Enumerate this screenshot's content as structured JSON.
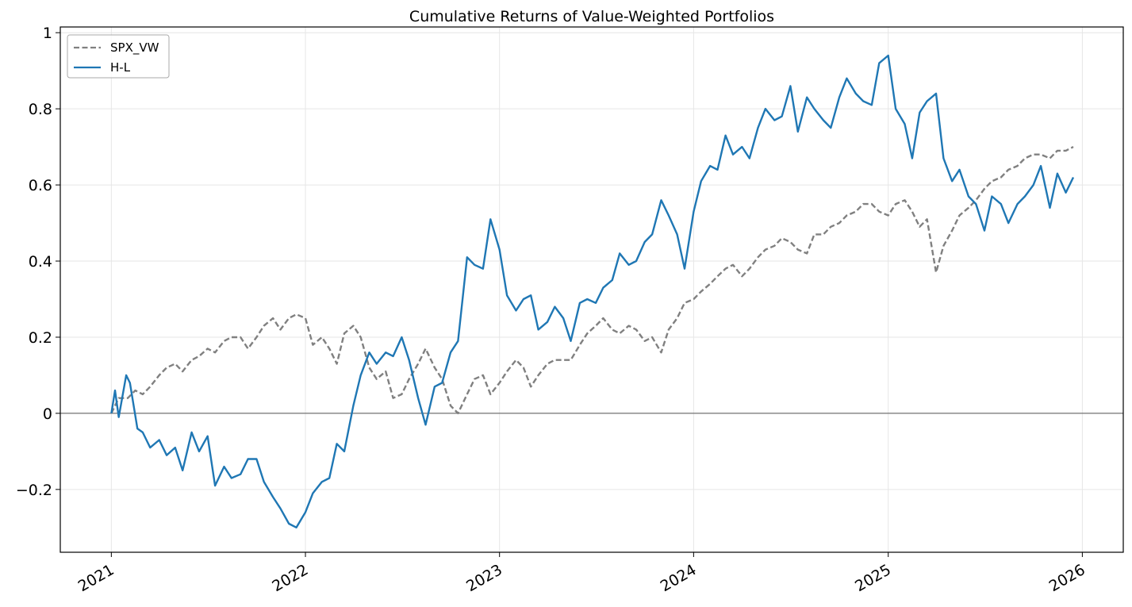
{
  "chart_data": {
    "type": "line",
    "title": "Cumulative Returns of Value-Weighted Portfolios",
    "xlabel": "",
    "ylabel": "",
    "xlim": [
      "2020-09-27",
      "2026-03-19"
    ],
    "ylim": [
      -0.365,
      1.015
    ],
    "x_ticks": [
      "2021",
      "2022",
      "2023",
      "2024",
      "2025",
      "2026"
    ],
    "y_ticks": [
      {
        "value": -0.2,
        "label": "−0.2"
      },
      {
        "value": 0,
        "label": "0"
      },
      {
        "value": 0.2,
        "label": "0.2"
      },
      {
        "value": 0.4,
        "label": "0.4"
      },
      {
        "value": 0.6,
        "label": "0.6"
      },
      {
        "value": 0.8,
        "label": "0.8"
      },
      {
        "value": 1.0,
        "label": "1"
      }
    ],
    "grid": true,
    "zero_line": true,
    "legend_position": "upper left",
    "series": [
      {
        "name": "SPX_VW",
        "color": "#808080",
        "style": "dashed",
        "points": [
          [
            "2021-01-01",
            0.0
          ],
          [
            "2021-01-15",
            0.04
          ],
          [
            "2021-02-01",
            0.04
          ],
          [
            "2021-02-15",
            0.06
          ],
          [
            "2021-03-01",
            0.05
          ],
          [
            "2021-03-15",
            0.07
          ],
          [
            "2021-04-01",
            0.1
          ],
          [
            "2021-04-15",
            0.12
          ],
          [
            "2021-05-01",
            0.13
          ],
          [
            "2021-05-15",
            0.11
          ],
          [
            "2021-06-01",
            0.14
          ],
          [
            "2021-06-15",
            0.15
          ],
          [
            "2021-07-01",
            0.17
          ],
          [
            "2021-07-15",
            0.16
          ],
          [
            "2021-08-01",
            0.19
          ],
          [
            "2021-08-15",
            0.2
          ],
          [
            "2021-09-01",
            0.2
          ],
          [
            "2021-09-15",
            0.17
          ],
          [
            "2021-10-01",
            0.2
          ],
          [
            "2021-10-15",
            0.23
          ],
          [
            "2021-11-01",
            0.25
          ],
          [
            "2021-11-15",
            0.22
          ],
          [
            "2021-12-01",
            0.25
          ],
          [
            "2021-12-15",
            0.26
          ],
          [
            "2022-01-01",
            0.25
          ],
          [
            "2022-01-15",
            0.18
          ],
          [
            "2022-02-01",
            0.2
          ],
          [
            "2022-02-15",
            0.17
          ],
          [
            "2022-03-01",
            0.13
          ],
          [
            "2022-03-15",
            0.21
          ],
          [
            "2022-04-01",
            0.23
          ],
          [
            "2022-04-15",
            0.2
          ],
          [
            "2022-05-01",
            0.12
          ],
          [
            "2022-05-15",
            0.09
          ],
          [
            "2022-06-01",
            0.11
          ],
          [
            "2022-06-15",
            0.04
          ],
          [
            "2022-07-01",
            0.05
          ],
          [
            "2022-07-15",
            0.09
          ],
          [
            "2022-08-01",
            0.13
          ],
          [
            "2022-08-15",
            0.17
          ],
          [
            "2022-09-01",
            0.12
          ],
          [
            "2022-09-15",
            0.09
          ],
          [
            "2022-10-01",
            0.02
          ],
          [
            "2022-10-15",
            0.0
          ],
          [
            "2022-11-01",
            0.05
          ],
          [
            "2022-11-15",
            0.09
          ],
          [
            "2022-12-01",
            0.1
          ],
          [
            "2022-12-15",
            0.05
          ],
          [
            "2023-01-01",
            0.08
          ],
          [
            "2023-01-15",
            0.11
          ],
          [
            "2023-02-01",
            0.14
          ],
          [
            "2023-02-15",
            0.12
          ],
          [
            "2023-03-01",
            0.07
          ],
          [
            "2023-03-15",
            0.1
          ],
          [
            "2023-04-01",
            0.13
          ],
          [
            "2023-04-15",
            0.14
          ],
          [
            "2023-05-01",
            0.14
          ],
          [
            "2023-05-15",
            0.14
          ],
          [
            "2023-06-01",
            0.18
          ],
          [
            "2023-06-15",
            0.21
          ],
          [
            "2023-07-01",
            0.23
          ],
          [
            "2023-07-15",
            0.25
          ],
          [
            "2023-08-01",
            0.22
          ],
          [
            "2023-08-15",
            0.21
          ],
          [
            "2023-09-01",
            0.23
          ],
          [
            "2023-09-15",
            0.22
          ],
          [
            "2023-10-01",
            0.19
          ],
          [
            "2023-10-15",
            0.2
          ],
          [
            "2023-11-01",
            0.16
          ],
          [
            "2023-11-15",
            0.22
          ],
          [
            "2023-12-01",
            0.25
          ],
          [
            "2023-12-15",
            0.29
          ],
          [
            "2024-01-01",
            0.3
          ],
          [
            "2024-01-15",
            0.32
          ],
          [
            "2024-02-01",
            0.34
          ],
          [
            "2024-02-15",
            0.36
          ],
          [
            "2024-03-01",
            0.38
          ],
          [
            "2024-03-15",
            0.39
          ],
          [
            "2024-04-01",
            0.36
          ],
          [
            "2024-04-15",
            0.38
          ],
          [
            "2024-05-01",
            0.41
          ],
          [
            "2024-05-15",
            0.43
          ],
          [
            "2024-06-01",
            0.44
          ],
          [
            "2024-06-15",
            0.46
          ],
          [
            "2024-07-01",
            0.45
          ],
          [
            "2024-07-15",
            0.43
          ],
          [
            "2024-08-01",
            0.42
          ],
          [
            "2024-08-15",
            0.47
          ],
          [
            "2024-09-01",
            0.47
          ],
          [
            "2024-09-15",
            0.49
          ],
          [
            "2024-10-01",
            0.5
          ],
          [
            "2024-10-15",
            0.52
          ],
          [
            "2024-11-01",
            0.53
          ],
          [
            "2024-11-15",
            0.55
          ],
          [
            "2024-12-01",
            0.55
          ],
          [
            "2024-12-15",
            0.53
          ],
          [
            "2025-01-01",
            0.52
          ],
          [
            "2025-01-15",
            0.55
          ],
          [
            "2025-02-01",
            0.56
          ],
          [
            "2025-02-15",
            0.53
          ],
          [
            "2025-03-01",
            0.49
          ],
          [
            "2025-03-15",
            0.51
          ],
          [
            "2025-04-01",
            0.37
          ],
          [
            "2025-04-15",
            0.44
          ],
          [
            "2025-05-01",
            0.48
          ],
          [
            "2025-05-15",
            0.52
          ],
          [
            "2025-06-01",
            0.54
          ],
          [
            "2025-06-15",
            0.56
          ],
          [
            "2025-07-01",
            0.59
          ],
          [
            "2025-07-15",
            0.61
          ],
          [
            "2025-08-01",
            0.62
          ],
          [
            "2025-08-15",
            0.64
          ],
          [
            "2025-09-01",
            0.65
          ],
          [
            "2025-09-15",
            0.67
          ],
          [
            "2025-10-01",
            0.68
          ],
          [
            "2025-10-15",
            0.68
          ],
          [
            "2025-11-01",
            0.67
          ],
          [
            "2025-11-15",
            0.69
          ],
          [
            "2025-12-01",
            0.69
          ],
          [
            "2025-12-15",
            0.7
          ]
        ]
      },
      {
        "name": "H-L",
        "color": "#1f77b4",
        "style": "solid",
        "points": [
          [
            "2021-01-01",
            0.0
          ],
          [
            "2021-01-08",
            0.06
          ],
          [
            "2021-01-15",
            -0.01
          ],
          [
            "2021-01-29",
            0.1
          ],
          [
            "2021-02-05",
            0.08
          ],
          [
            "2021-02-19",
            -0.04
          ],
          [
            "2021-03-01",
            -0.05
          ],
          [
            "2021-03-15",
            -0.09
          ],
          [
            "2021-04-01",
            -0.07
          ],
          [
            "2021-04-15",
            -0.11
          ],
          [
            "2021-05-01",
            -0.09
          ],
          [
            "2021-05-15",
            -0.15
          ],
          [
            "2021-06-01",
            -0.05
          ],
          [
            "2021-06-15",
            -0.1
          ],
          [
            "2021-07-01",
            -0.06
          ],
          [
            "2021-07-15",
            -0.19
          ],
          [
            "2021-08-01",
            -0.14
          ],
          [
            "2021-08-15",
            -0.17
          ],
          [
            "2021-09-01",
            -0.16
          ],
          [
            "2021-09-15",
            -0.12
          ],
          [
            "2021-10-01",
            -0.12
          ],
          [
            "2021-10-15",
            -0.18
          ],
          [
            "2021-11-01",
            -0.22
          ],
          [
            "2021-11-15",
            -0.25
          ],
          [
            "2021-12-01",
            -0.29
          ],
          [
            "2021-12-15",
            -0.3
          ],
          [
            "2022-01-01",
            -0.26
          ],
          [
            "2022-01-15",
            -0.21
          ],
          [
            "2022-02-01",
            -0.18
          ],
          [
            "2022-02-15",
            -0.17
          ],
          [
            "2022-03-01",
            -0.08
          ],
          [
            "2022-03-15",
            -0.1
          ],
          [
            "2022-04-01",
            0.02
          ],
          [
            "2022-04-15",
            0.1
          ],
          [
            "2022-05-01",
            0.16
          ],
          [
            "2022-05-15",
            0.13
          ],
          [
            "2022-06-01",
            0.16
          ],
          [
            "2022-06-15",
            0.15
          ],
          [
            "2022-07-01",
            0.2
          ],
          [
            "2022-07-15",
            0.14
          ],
          [
            "2022-08-01",
            0.04
          ],
          [
            "2022-08-15",
            -0.03
          ],
          [
            "2022-09-01",
            0.07
          ],
          [
            "2022-09-15",
            0.08
          ],
          [
            "2022-10-01",
            0.16
          ],
          [
            "2022-10-15",
            0.19
          ],
          [
            "2022-11-01",
            0.41
          ],
          [
            "2022-11-15",
            0.39
          ],
          [
            "2022-12-01",
            0.38
          ],
          [
            "2022-12-15",
            0.51
          ],
          [
            "2023-01-01",
            0.43
          ],
          [
            "2023-01-15",
            0.31
          ],
          [
            "2023-02-01",
            0.27
          ],
          [
            "2023-02-15",
            0.3
          ],
          [
            "2023-03-01",
            0.31
          ],
          [
            "2023-03-15",
            0.22
          ],
          [
            "2023-04-01",
            0.24
          ],
          [
            "2023-04-15",
            0.28
          ],
          [
            "2023-05-01",
            0.25
          ],
          [
            "2023-05-15",
            0.19
          ],
          [
            "2023-06-01",
            0.29
          ],
          [
            "2023-06-15",
            0.3
          ],
          [
            "2023-07-01",
            0.29
          ],
          [
            "2023-07-15",
            0.33
          ],
          [
            "2023-08-01",
            0.35
          ],
          [
            "2023-08-15",
            0.42
          ],
          [
            "2023-09-01",
            0.39
          ],
          [
            "2023-09-15",
            0.4
          ],
          [
            "2023-10-01",
            0.45
          ],
          [
            "2023-10-15",
            0.47
          ],
          [
            "2023-11-01",
            0.56
          ],
          [
            "2023-11-15",
            0.52
          ],
          [
            "2023-12-01",
            0.47
          ],
          [
            "2023-12-15",
            0.38
          ],
          [
            "2024-01-01",
            0.53
          ],
          [
            "2024-01-15",
            0.61
          ],
          [
            "2024-02-01",
            0.65
          ],
          [
            "2024-02-15",
            0.64
          ],
          [
            "2024-03-01",
            0.73
          ],
          [
            "2024-03-15",
            0.68
          ],
          [
            "2024-04-01",
            0.7
          ],
          [
            "2024-04-15",
            0.67
          ],
          [
            "2024-05-01",
            0.75
          ],
          [
            "2024-05-15",
            0.8
          ],
          [
            "2024-06-01",
            0.77
          ],
          [
            "2024-06-15",
            0.78
          ],
          [
            "2024-07-01",
            0.86
          ],
          [
            "2024-07-15",
            0.74
          ],
          [
            "2024-08-01",
            0.83
          ],
          [
            "2024-08-15",
            0.8
          ],
          [
            "2024-09-01",
            0.77
          ],
          [
            "2024-09-15",
            0.75
          ],
          [
            "2024-10-01",
            0.83
          ],
          [
            "2024-10-15",
            0.88
          ],
          [
            "2024-11-01",
            0.84
          ],
          [
            "2024-11-15",
            0.82
          ],
          [
            "2024-12-01",
            0.81
          ],
          [
            "2024-12-15",
            0.92
          ],
          [
            "2025-01-01",
            0.94
          ],
          [
            "2025-01-15",
            0.8
          ],
          [
            "2025-02-01",
            0.76
          ],
          [
            "2025-02-15",
            0.67
          ],
          [
            "2025-03-01",
            0.79
          ],
          [
            "2025-03-15",
            0.82
          ],
          [
            "2025-04-01",
            0.84
          ],
          [
            "2025-04-15",
            0.67
          ],
          [
            "2025-05-01",
            0.61
          ],
          [
            "2025-05-15",
            0.64
          ],
          [
            "2025-06-01",
            0.57
          ],
          [
            "2025-06-15",
            0.55
          ],
          [
            "2025-07-01",
            0.48
          ],
          [
            "2025-07-15",
            0.57
          ],
          [
            "2025-08-01",
            0.55
          ],
          [
            "2025-08-15",
            0.5
          ],
          [
            "2025-09-01",
            0.55
          ],
          [
            "2025-09-15",
            0.57
          ],
          [
            "2025-10-01",
            0.6
          ],
          [
            "2025-10-15",
            0.65
          ],
          [
            "2025-11-01",
            0.54
          ],
          [
            "2025-11-15",
            0.63
          ],
          [
            "2025-12-01",
            0.58
          ],
          [
            "2025-12-15",
            0.62
          ]
        ]
      }
    ]
  }
}
